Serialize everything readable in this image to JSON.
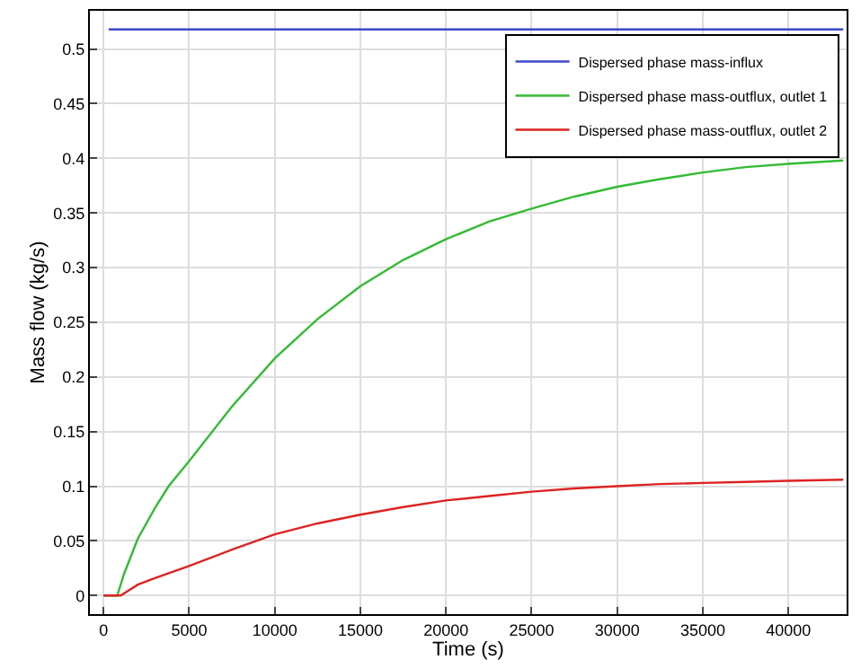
{
  "chart_data": {
    "type": "line",
    "xlabel": "Time (s)",
    "ylabel": "Mass flow (kg/s)",
    "xlim": [
      -800,
      43400
    ],
    "ylim": [
      -0.017,
      0.535
    ],
    "xticks": [
      0,
      5000,
      10000,
      15000,
      20000,
      25000,
      30000,
      35000,
      40000
    ],
    "yticks": [
      0,
      0.05,
      0.1,
      0.15,
      0.2,
      0.25,
      0.3,
      0.35,
      0.4,
      0.45,
      0.5
    ],
    "grid": true,
    "legend": "top right",
    "line_style": "solid",
    "marker": "none",
    "series": [
      {
        "name": "Dispersed phase mass-influx",
        "color": "#3f48cc",
        "x": [
          300,
          43200
        ],
        "values": [
          0.518,
          0.518
        ]
      },
      {
        "name": "Dispersed phase mass-outflux, outlet 1",
        "color": "#33bb33",
        "x": [
          0,
          800,
          1200,
          2000,
          3000,
          3800,
          5000,
          7500,
          10000,
          12500,
          15000,
          17500,
          20000,
          22500,
          25000,
          27500,
          30000,
          32500,
          35000,
          37500,
          40000,
          43200
        ],
        "values": [
          0,
          0,
          0.02,
          0.052,
          0.08,
          0.1,
          0.123,
          0.173,
          0.217,
          0.253,
          0.283,
          0.307,
          0.326,
          0.342,
          0.354,
          0.365,
          0.374,
          0.381,
          0.387,
          0.392,
          0.395,
          0.398
        ]
      },
      {
        "name": "Dispersed phase mass-outflux, outlet 2",
        "color": "#dd2222",
        "x": [
          0,
          1000,
          1500,
          2000,
          3000,
          5000,
          7500,
          10000,
          12500,
          15000,
          17500,
          20000,
          22500,
          25000,
          27500,
          30000,
          32500,
          35000,
          37500,
          40000,
          43200
        ],
        "values": [
          0,
          0,
          0.005,
          0.01,
          0.016,
          0.027,
          0.042,
          0.056,
          0.066,
          0.074,
          0.081,
          0.087,
          0.091,
          0.095,
          0.098,
          0.1,
          0.102,
          0.103,
          0.104,
          0.105,
          0.106
        ]
      }
    ]
  }
}
